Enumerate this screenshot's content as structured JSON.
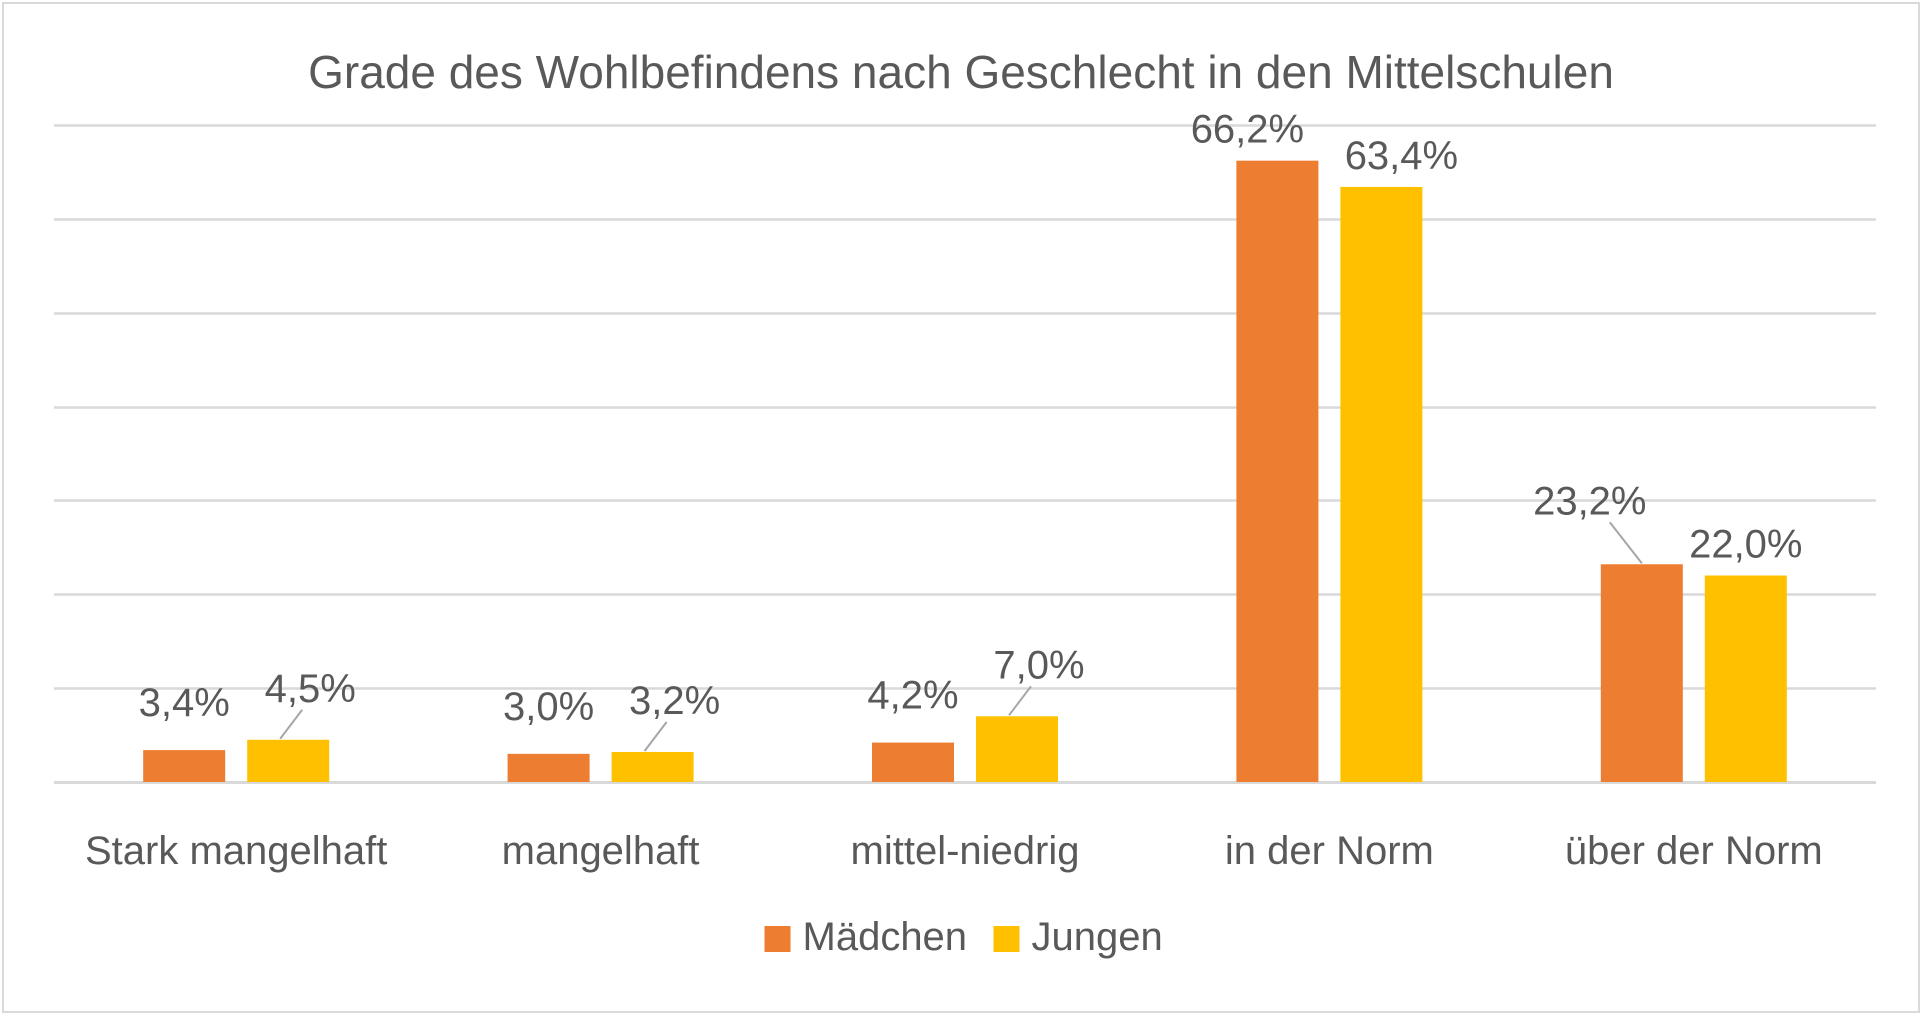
{
  "chart_data": {
    "type": "bar",
    "title": "Grade des Wohlbefindens nach Geschlecht in den Mittelschulen",
    "xlabel": "",
    "ylabel": "",
    "categories": [
      "Stark mangelhaft",
      "mangelhaft",
      "mittel-niedrig",
      "in der Norm",
      "über der Norm"
    ],
    "series": [
      {
        "name": "Mädchen",
        "color": "#ED7D31",
        "values": [
          3.4,
          3.0,
          4.2,
          66.2,
          23.2
        ],
        "labels": [
          "3,4%",
          "3,0%",
          "4,2%",
          "66,2%",
          "23,2%"
        ]
      },
      {
        "name": "Jungen",
        "color": "#FFC000",
        "values": [
          4.5,
          3.2,
          7.0,
          63.4,
          22.0
        ],
        "labels": [
          "4,5%",
          "3,2%",
          "7,0%",
          "63,4%",
          "22,0%"
        ]
      }
    ],
    "ylim": [
      0,
      70
    ],
    "y_gridline_step": 10,
    "grid": true,
    "y_axis_labels_shown": false,
    "legend_position": "bottom",
    "colors": {
      "gridline": "#d9d9d9",
      "text": "#595959",
      "border": "#d9d9d9"
    }
  }
}
